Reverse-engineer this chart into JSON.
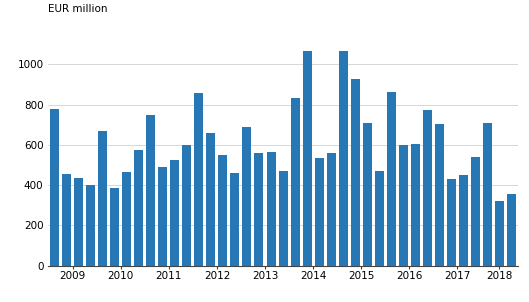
{
  "values": [
    780,
    455,
    435,
    400,
    670,
    385,
    465,
    575,
    750,
    490,
    525,
    600,
    860,
    660,
    550,
    460,
    690,
    560,
    565,
    470,
    835,
    1065,
    535,
    560,
    1065,
    930,
    710,
    470,
    865,
    600,
    605,
    775,
    705,
    430,
    450,
    540,
    710,
    320,
    355
  ],
  "years": [
    2009,
    2010,
    2011,
    2012,
    2013,
    2014,
    2015,
    2016,
    2017,
    2018
  ],
  "bars_per_year": [
    4,
    4,
    4,
    4,
    4,
    4,
    4,
    4,
    4,
    3
  ],
  "bar_color": "#2777b4",
  "ylabel": "EUR million",
  "ylim": [
    0,
    1200
  ],
  "yticks": [
    0,
    200,
    400,
    600,
    800,
    1000
  ],
  "background_color": "#ffffff",
  "grid_color": "#c8c8c8",
  "axis_fontsize": 7.5,
  "ylabel_fontsize": 7.5
}
